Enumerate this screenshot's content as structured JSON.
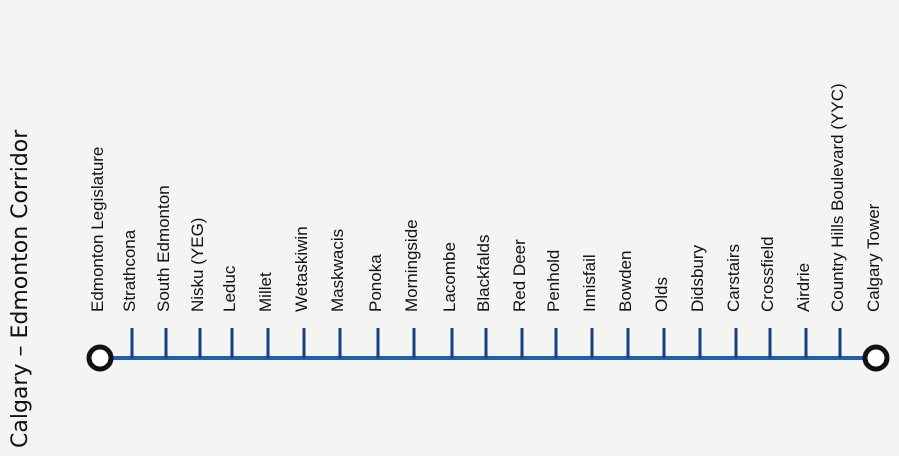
{
  "title": "Calgary – Edmonton Corridor",
  "colors": {
    "line": "#1e5fb0",
    "tick": "#163e84",
    "terminus_ring": "#111111",
    "text": "#111111"
  },
  "stations": [
    "Edmonton Legislature",
    "Strathcona",
    "South Edmonton",
    "Nisku (YEG)",
    "Leduc",
    "Millet",
    "Wetaskiwin",
    "Maskwacis",
    "Ponoka",
    "Morningside",
    "Lacombe",
    "Blackfalds",
    "Red Deer",
    "Penhold",
    "Innisfail",
    "Bowden",
    "Olds",
    "Didsbury",
    "Carstairs",
    "Crossfield",
    "Airdrie",
    "Country Hills Boulevard (YYC)",
    "Calgary Tower"
  ]
}
